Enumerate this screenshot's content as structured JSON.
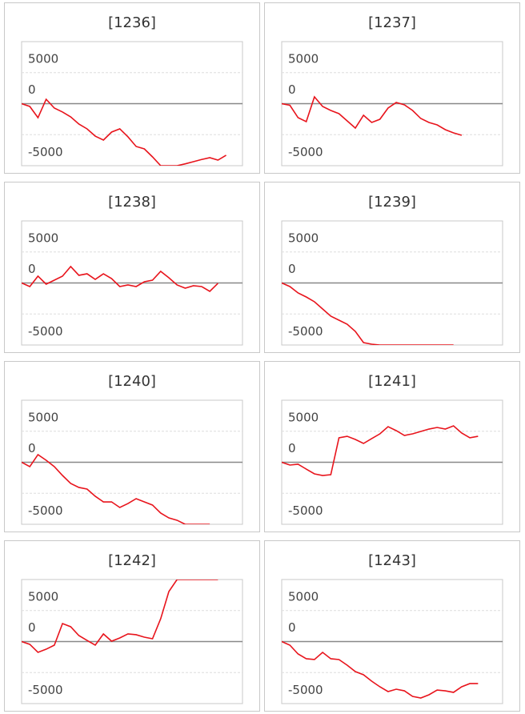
{
  "chart_data": [
    {
      "type": "line",
      "title": "[1236]",
      "color": "#e8141c",
      "xlim": [
        0,
        27
      ],
      "ylim": [
        -10000,
        10000
      ],
      "yticks": [
        5000,
        0,
        -5000
      ],
      "values": [
        0,
        -450,
        -2260,
        710,
        -710,
        -1350,
        -2130,
        -3290,
        -4060,
        -5230,
        -5870,
        -4580,
        -4060,
        -5350,
        -6900,
        -7290,
        -8580,
        -10000,
        -10000,
        -10000,
        -9700,
        -9350,
        -9000,
        -8710,
        -9100,
        -8320
      ]
    },
    {
      "type": "line",
      "title": "[1237]",
      "color": "#e8141c",
      "xlim": [
        0,
        27
      ],
      "ylim": [
        -10000,
        10000
      ],
      "yticks": [
        5000,
        0,
        -5000
      ],
      "values": [
        0,
        -260,
        -2260,
        -2900,
        1100,
        -450,
        -1100,
        -1610,
        -2770,
        -3940,
        -1870,
        -3030,
        -2520,
        -710,
        190,
        -190,
        -1100,
        -2390,
        -3030,
        -3420,
        -4190,
        -4710,
        -5100
      ]
    },
    {
      "type": "line",
      "title": "[1238]",
      "color": "#e8141c",
      "xlim": [
        0,
        27
      ],
      "ylim": [
        -10000,
        10000
      ],
      "yticks": [
        5000,
        0,
        -5000
      ],
      "values": [
        0,
        -580,
        1100,
        -190,
        450,
        1100,
        2650,
        1230,
        1480,
        580,
        1480,
        710,
        -580,
        -320,
        -580,
        190,
        450,
        1870,
        840,
        -320,
        -840,
        -450,
        -580,
        -1350,
        -60
      ]
    },
    {
      "type": "line",
      "title": "[1239]",
      "color": "#e8141c",
      "xlim": [
        0,
        27
      ],
      "ylim": [
        -10000,
        10000
      ],
      "yticks": [
        5000,
        0,
        -5000
      ],
      "values": [
        0,
        -580,
        -1610,
        -2260,
        -3030,
        -4190,
        -5350,
        -6000,
        -6650,
        -7810,
        -9610,
        -9870,
        -10000,
        -10000,
        -10000,
        -10000,
        -10000,
        -10000,
        -10000,
        -10000,
        -10000,
        -10000
      ]
    },
    {
      "type": "line",
      "title": "[1240]",
      "color": "#e8141c",
      "xlim": [
        0,
        27
      ],
      "ylim": [
        -10000,
        10000
      ],
      "yticks": [
        5000,
        0,
        -5000
      ],
      "values": [
        0,
        -710,
        1230,
        320,
        -710,
        -2130,
        -3420,
        -4060,
        -4320,
        -5480,
        -6390,
        -6390,
        -7290,
        -6650,
        -5870,
        -6390,
        -6900,
        -8190,
        -8970,
        -9350,
        -10000,
        -10000,
        -10000,
        -10000
      ]
    },
    {
      "type": "line",
      "title": "[1241]",
      "color": "#e8141c",
      "xlim": [
        0,
        27
      ],
      "ylim": [
        -10000,
        10000
      ],
      "yticks": [
        5000,
        0,
        -5000
      ],
      "values": [
        0,
        -450,
        -320,
        -1100,
        -1870,
        -2130,
        -2000,
        3940,
        4190,
        3680,
        3030,
        3810,
        4580,
        5740,
        5100,
        4320,
        4580,
        4970,
        5350,
        5610,
        5350,
        5870,
        4710,
        3940,
        4190
      ]
    },
    {
      "type": "line",
      "title": "[1242]",
      "color": "#e8141c",
      "xlim": [
        0,
        27
      ],
      "ylim": [
        -10000,
        10000
      ],
      "yticks": [
        5000,
        0,
        -5000
      ],
      "values": [
        0,
        -450,
        -1740,
        -1230,
        -580,
        2900,
        2390,
        970,
        190,
        -580,
        1230,
        60,
        580,
        1230,
        1100,
        710,
        450,
        3680,
        8060,
        10000,
        10000,
        10000,
        10000,
        10000,
        10000
      ]
    },
    {
      "type": "line",
      "title": "[1243]",
      "color": "#e8141c",
      "xlim": [
        0,
        27
      ],
      "ylim": [
        -10000,
        10000
      ],
      "yticks": [
        5000,
        0,
        -5000
      ],
      "values": [
        0,
        -580,
        -2000,
        -2770,
        -2900,
        -1740,
        -2770,
        -2900,
        -3810,
        -4840,
        -5350,
        -6390,
        -7290,
        -8060,
        -7680,
        -7940,
        -8840,
        -9100,
        -8580,
        -7810,
        -7940,
        -8190,
        -7290,
        -6770,
        -6770
      ]
    }
  ]
}
